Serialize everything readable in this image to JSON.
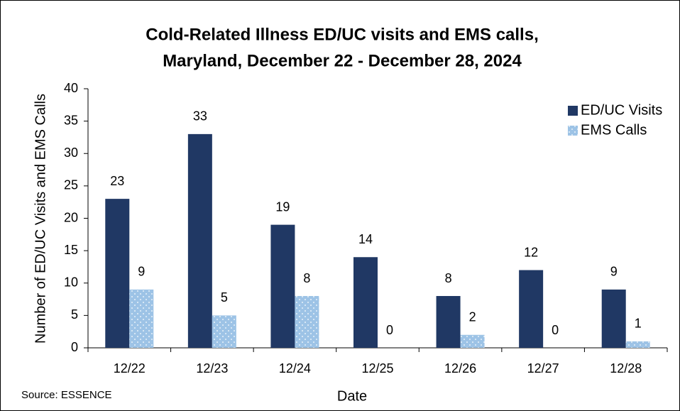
{
  "chart_data": {
    "type": "bar",
    "title_lines": [
      "Cold-Related Illness ED/UC visits and EMS calls,",
      "Maryland, December 22 - December 28, 2024"
    ],
    "x_label": "Date",
    "y_label": "Number of ED/UC Visits and EMS Calls",
    "source": "Source: ESSENCE",
    "categories": [
      "12/22",
      "12/23",
      "12/24",
      "12/25",
      "12/26",
      "12/27",
      "12/28"
    ],
    "series": [
      {
        "name": "ED/UC Visits",
        "color": "#203864",
        "values": [
          23,
          33,
          19,
          14,
          8,
          12,
          9
        ]
      },
      {
        "name": "EMS Calls",
        "color": "#9dc3e6",
        "pattern": "dots",
        "values": [
          9,
          5,
          8,
          0,
          2,
          0,
          1
        ]
      }
    ],
    "ylim": [
      0,
      40
    ],
    "yticks": [
      0,
      5,
      10,
      15,
      20,
      25,
      30,
      35,
      40
    ],
    "grid": false,
    "legend": "top-right",
    "data_labels": true
  }
}
